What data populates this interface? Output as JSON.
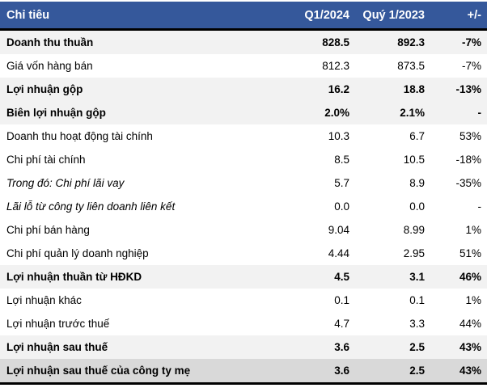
{
  "table": {
    "columns": {
      "label": "Chỉ tiêu",
      "q1_2024": "Q1/2024",
      "q1_2023": "Quý 1/2023",
      "change": "+/-"
    },
    "rows": [
      {
        "label": "Doanh thu thuần",
        "q1_2024": "828.5",
        "q1_2023": "892.3",
        "change": "-7%"
      },
      {
        "label": "Giá vốn hàng bán",
        "q1_2024": "812.3",
        "q1_2023": "873.5",
        "change": "-7%"
      },
      {
        "label": "Lợi nhuận gộp",
        "q1_2024": "16.2",
        "q1_2023": "18.8",
        "change": "-13%"
      },
      {
        "label": "Biên lợi nhuận gộp",
        "q1_2024": "2.0%",
        "q1_2023": "2.1%",
        "change": "-"
      },
      {
        "label": "Doanh thu hoạt động tài chính",
        "q1_2024": "10.3",
        "q1_2023": "6.7",
        "change": "53%"
      },
      {
        "label": "Chi phí tài chính",
        "q1_2024": "8.5",
        "q1_2023": "10.5",
        "change": "-18%"
      },
      {
        "label": "Trong đó: Chi phí lãi vay",
        "q1_2024": "5.7",
        "q1_2023": "8.9",
        "change": "-35%"
      },
      {
        "label": "Lãi lỗ từ công ty liên doanh liên kết",
        "q1_2024": "0.0",
        "q1_2023": "0.0",
        "change": "-"
      },
      {
        "label": "Chi phí bán hàng",
        "q1_2024": "9.04",
        "q1_2023": "8.99",
        "change": "1%"
      },
      {
        "label": "Chi phí quản lý doanh nghiệp",
        "q1_2024": "4.44",
        "q1_2023": "2.95",
        "change": "51%"
      },
      {
        "label": "Lợi nhuận thuần từ HĐKD",
        "q1_2024": "4.5",
        "q1_2023": "3.1",
        "change": "46%"
      },
      {
        "label": "Lợi nhuận khác",
        "q1_2024": "0.1",
        "q1_2023": "0.1",
        "change": "1%"
      },
      {
        "label": "Lợi nhuận trước thuế",
        "q1_2024": "4.7",
        "q1_2023": "3.3",
        "change": "44%"
      },
      {
        "label": "Lợi nhuận sau thuế",
        "q1_2024": "3.6",
        "q1_2023": "2.5",
        "change": "43%"
      },
      {
        "label": "Lợi nhuận sau thuế của công ty mẹ",
        "q1_2024": "3.6",
        "q1_2023": "2.5",
        "change": "43%"
      }
    ]
  },
  "colors": {
    "header_bg": "#35589B",
    "header_text": "#FFFFFF",
    "row_highlight": "#F2F2F2",
    "row_total": "#D9D9D9",
    "border": "#000000",
    "body_text": "#000000"
  }
}
